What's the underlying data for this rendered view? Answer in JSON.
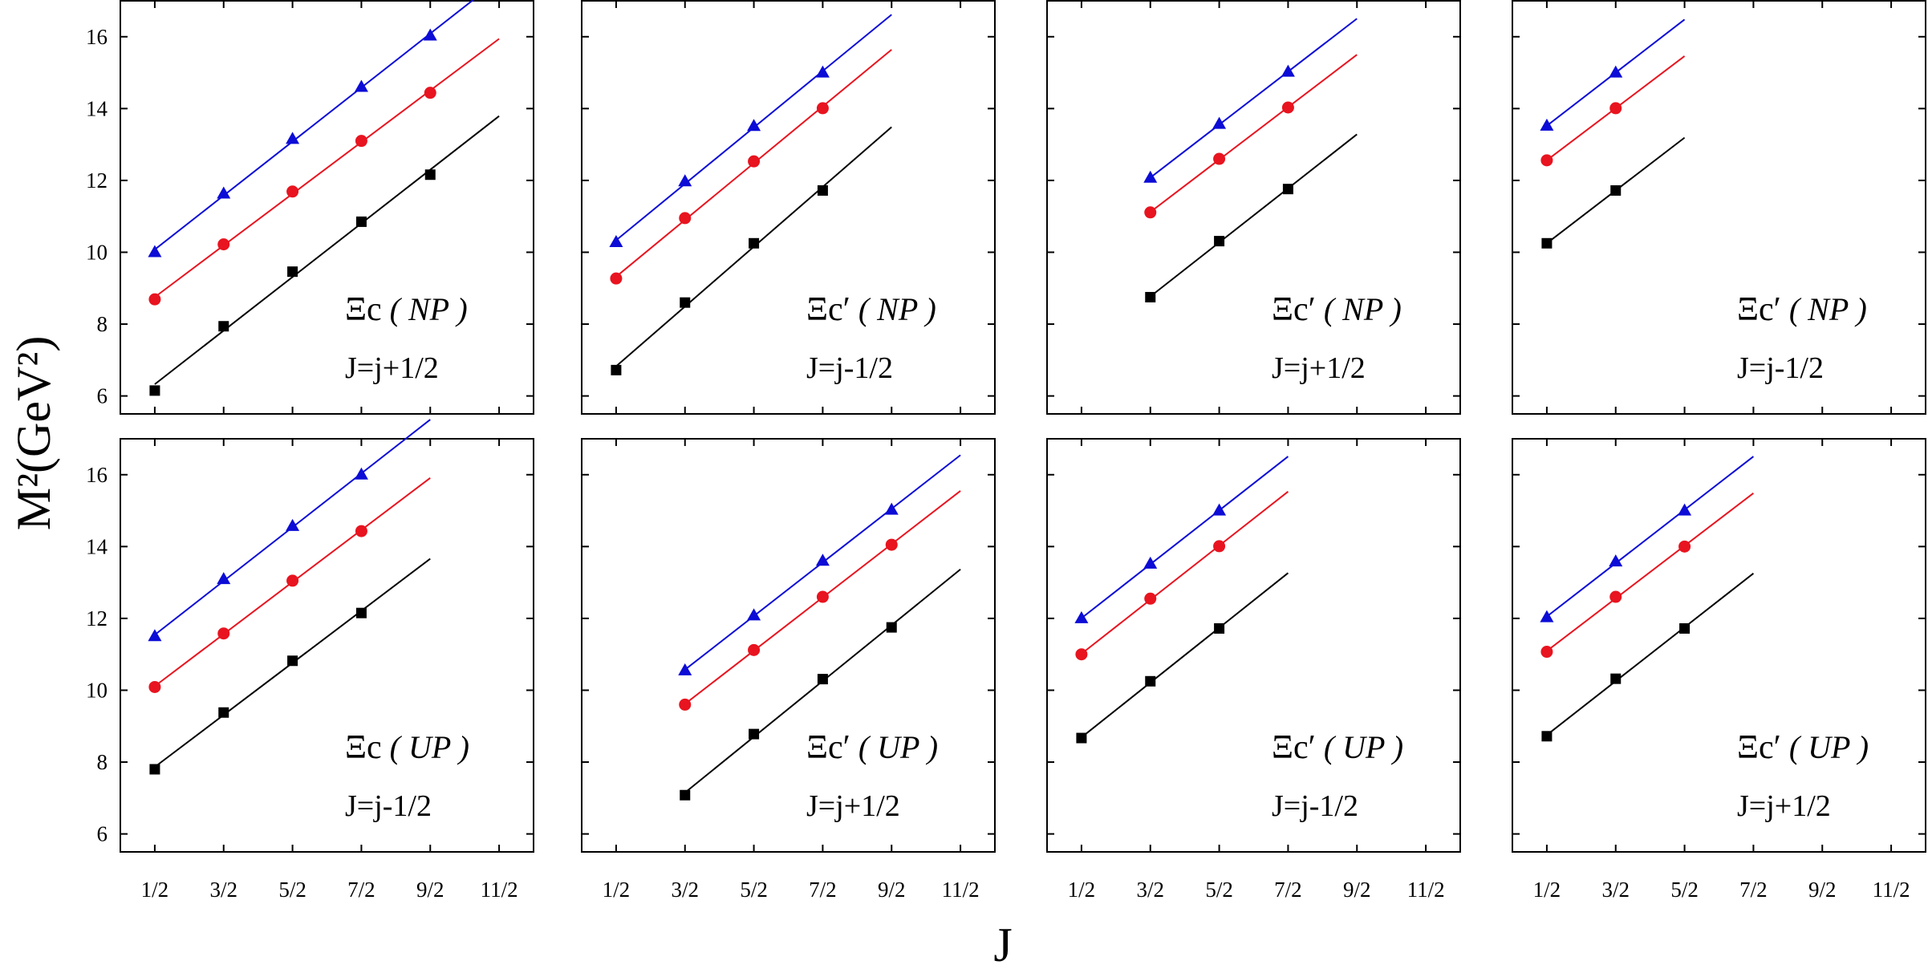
{
  "chart_data": {
    "type": "scatter",
    "xlabel": "J",
    "ylabel": "M²(GeV²)",
    "x_ticks": [
      "1/2",
      "3/2",
      "5/2",
      "7/2",
      "9/2",
      "11/2"
    ],
    "y_ticks": [
      "6",
      "8",
      "10",
      "12",
      "14",
      "16"
    ],
    "xlim": [
      0,
      6
    ],
    "ylim": [
      5.5,
      17
    ],
    "grid": false,
    "series_colors": [
      "#000000",
      "#e8141f",
      "#0c0cd6"
    ],
    "series_markers": [
      "square",
      "circle",
      "triangle"
    ],
    "panels": [
      {
        "id": "top-1",
        "name": "Ξc",
        "prime": false,
        "mode": "NP",
        "jlabel": "J=j+1/2",
        "series": [
          {
            "x": [
              0.5,
              1.5,
              2.5,
              3.5,
              4.5
            ],
            "y": [
              6.15,
              7.94,
              9.46,
              10.85,
              12.16
            ]
          },
          {
            "x": [
              0.5,
              1.5,
              2.5,
              3.5,
              4.5
            ],
            "y": [
              8.69,
              10.22,
              11.69,
              13.1,
              14.44
            ]
          },
          {
            "x": [
              0.5,
              1.5,
              2.5,
              3.5,
              4.5
            ],
            "y": [
              10.0,
              11.63,
              13.15,
              14.6,
              16.03
            ]
          }
        ]
      },
      {
        "id": "top-2",
        "name": "Ξc",
        "prime": true,
        "mode": "NP",
        "jlabel": "J=j-1/2",
        "series": [
          {
            "x": [
              0.5,
              1.5,
              2.5,
              3.5
            ],
            "y": [
              6.72,
              8.6,
              10.25,
              11.72
            ]
          },
          {
            "x": [
              0.5,
              1.5,
              2.5,
              3.5
            ],
            "y": [
              9.27,
              10.95,
              12.53,
              14.01
            ]
          },
          {
            "x": [
              0.5,
              1.5,
              2.5,
              3.5
            ],
            "y": [
              10.28,
              11.97,
              13.51,
              15.0
            ]
          }
        ]
      },
      {
        "id": "top-3",
        "name": "Ξc",
        "prime": true,
        "mode": "NP",
        "jlabel": "J=j+1/2",
        "series": [
          {
            "x": [
              1.5,
              2.5,
              3.5
            ],
            "y": [
              8.75,
              10.31,
              11.76
            ]
          },
          {
            "x": [
              1.5,
              2.5,
              3.5
            ],
            "y": [
              11.11,
              12.6,
              14.03
            ]
          },
          {
            "x": [
              1.5,
              2.5,
              3.5
            ],
            "y": [
              12.07,
              13.57,
              15.02
            ]
          }
        ]
      },
      {
        "id": "top-4",
        "name": "Ξc",
        "prime": true,
        "mode": "NP",
        "jlabel": "J=j-1/2",
        "series": [
          {
            "x": [
              0.5,
              1.5
            ],
            "y": [
              10.25,
              11.72
            ]
          },
          {
            "x": [
              0.5,
              1.5
            ],
            "y": [
              12.56,
              14.01
            ]
          },
          {
            "x": [
              0.5,
              1.5
            ],
            "y": [
              13.52,
              15.0
            ]
          }
        ]
      },
      {
        "id": "bottom-1",
        "name": "Ξc",
        "prime": false,
        "mode": "UP",
        "jlabel": "J=j-1/2",
        "series": [
          {
            "x": [
              0.5,
              1.5,
              2.5,
              3.5
            ],
            "y": [
              7.8,
              9.38,
              10.82,
              12.15
            ]
          },
          {
            "x": [
              0.5,
              1.5,
              2.5,
              3.5
            ],
            "y": [
              10.09,
              11.58,
              13.05,
              14.43
            ]
          },
          {
            "x": [
              0.5,
              1.5,
              2.5,
              3.5
            ],
            "y": [
              11.5,
              13.09,
              14.57,
              16.0
            ]
          }
        ]
      },
      {
        "id": "bottom-2",
        "name": "Ξc",
        "prime": true,
        "mode": "UP",
        "jlabel": "J=j+1/2",
        "series": [
          {
            "x": [
              1.5,
              2.5,
              3.5,
              4.5
            ],
            "y": [
              7.08,
              8.78,
              10.31,
              11.75
            ]
          },
          {
            "x": [
              1.5,
              2.5,
              3.5,
              4.5
            ],
            "y": [
              9.6,
              11.12,
              12.6,
              14.05
            ]
          },
          {
            "x": [
              1.5,
              2.5,
              3.5,
              4.5
            ],
            "y": [
              10.55,
              12.08,
              13.6,
              15.02
            ]
          }
        ]
      },
      {
        "id": "bottom-3",
        "name": "Ξc",
        "prime": true,
        "mode": "UP",
        "jlabel": "J=j-1/2",
        "series": [
          {
            "x": [
              0.5,
              1.5,
              2.5
            ],
            "y": [
              8.67,
              10.25,
              11.72
            ]
          },
          {
            "x": [
              0.5,
              1.5,
              2.5
            ],
            "y": [
              11.0,
              12.55,
              14.01
            ]
          },
          {
            "x": [
              0.5,
              1.5,
              2.5
            ],
            "y": [
              12.0,
              13.52,
              15.0
            ]
          }
        ]
      },
      {
        "id": "bottom-4",
        "name": "Ξc",
        "prime": true,
        "mode": "UP",
        "jlabel": "J=j+1/2",
        "series": [
          {
            "x": [
              0.5,
              1.5,
              2.5
            ],
            "y": [
              8.72,
              10.32,
              11.72
            ]
          },
          {
            "x": [
              0.5,
              1.5,
              2.5
            ],
            "y": [
              11.07,
              12.6,
              14.0
            ]
          },
          {
            "x": [
              0.5,
              1.5,
              2.5
            ],
            "y": [
              12.03,
              13.58,
              15.0
            ]
          }
        ]
      }
    ]
  }
}
